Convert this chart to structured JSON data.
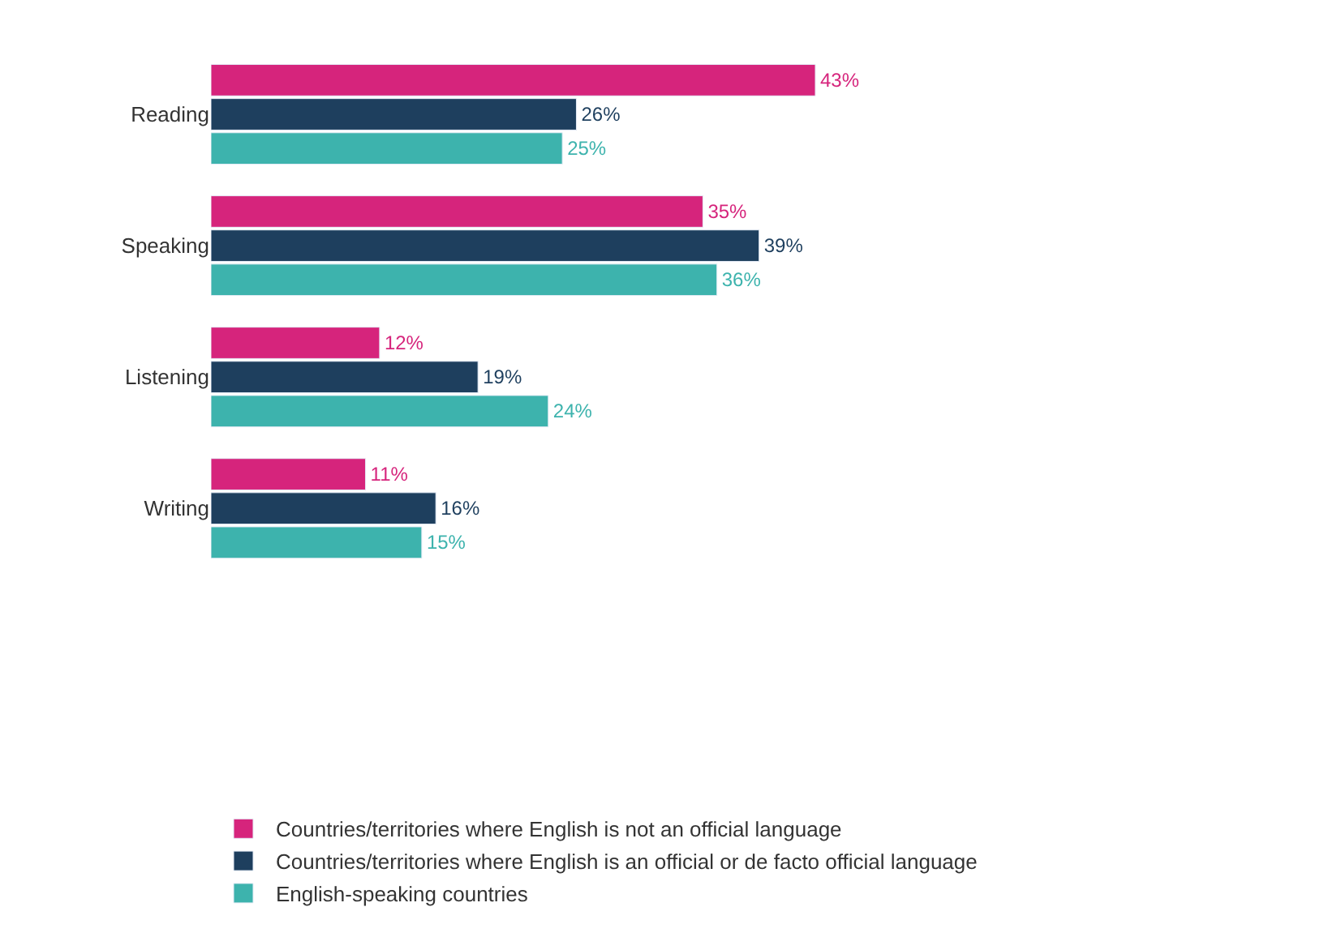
{
  "chart_data": {
    "type": "bar",
    "orientation": "horizontal",
    "categories": [
      "Reading",
      "Speaking",
      "Listening",
      "Writing"
    ],
    "series": [
      {
        "name": "Countries/territories where English is not an official language",
        "color": "#d6247c",
        "values": [
          43,
          35,
          12,
          11
        ],
        "value_labels": [
          "43%",
          "35%",
          "12%",
          "11%"
        ]
      },
      {
        "name": "Countries/territories where English is an official or de facto official language",
        "color": "#1e3f5e",
        "values": [
          26,
          39,
          19,
          16
        ],
        "value_labels": [
          "26%",
          "39%",
          "19%",
          "16%"
        ]
      },
      {
        "name": "English-speaking countries",
        "color": "#3db3ad",
        "values": [
          25,
          36,
          24,
          15
        ],
        "value_labels": [
          "25%",
          "36%",
          "24%",
          "15%"
        ]
      }
    ],
    "legend": "bottom"
  }
}
